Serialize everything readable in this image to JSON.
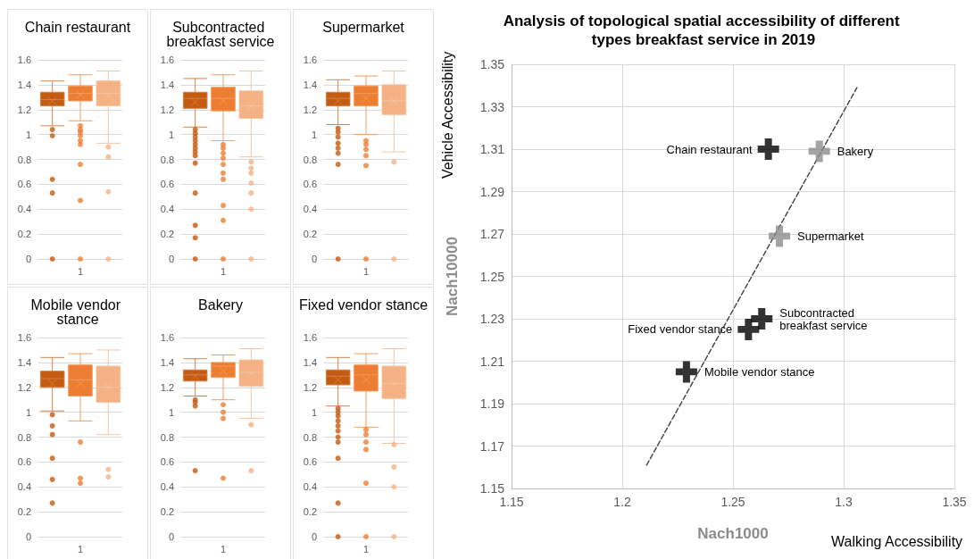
{
  "chart_data": [
    {
      "type": "box",
      "title": "Chain restaurant",
      "categories": [
        null,
        "1",
        null
      ],
      "ylim": [
        0,
        1.6
      ],
      "yticks": [
        0,
        0.2,
        0.4,
        0.6,
        0.8,
        1,
        1.2,
        1.4,
        1.6
      ],
      "grid": "y",
      "colors": [
        "#c55a11",
        "#ed7d31",
        "#f4b183"
      ],
      "boxes": [
        {
          "low": 1.07,
          "q1": 1.23,
          "median": 1.28,
          "q3": 1.34,
          "high": 1.43,
          "mean": 1.27,
          "outliers": [
            1.04,
            0.99,
            0.64,
            0.53,
            0
          ]
        },
        {
          "low": 1.11,
          "q1": 1.27,
          "median": 1.33,
          "q3": 1.39,
          "high": 1.48,
          "mean": 1.32,
          "outliers": [
            1.07,
            1.04,
            1.02,
            0.99,
            0.95,
            0.92,
            0.76,
            0.47,
            0
          ]
        },
        {
          "low": 0.93,
          "q1": 1.23,
          "median": 1.33,
          "q3": 1.43,
          "high": 1.51,
          "mean": 1.31,
          "outliers": [
            0.9,
            0.82,
            0.54,
            0
          ]
        }
      ]
    },
    {
      "type": "box",
      "title": "Subcontracted breakfast service",
      "categories": [
        null,
        "1",
        null
      ],
      "ylim": [
        0,
        1.6
      ],
      "yticks": [
        0,
        0.2,
        0.4,
        0.6,
        0.8,
        1,
        1.2,
        1.4,
        1.6
      ],
      "grid": "y",
      "colors": [
        "#c55a11",
        "#ed7d31",
        "#f4b183"
      ],
      "boxes": [
        {
          "low": 1.06,
          "q1": 1.21,
          "median": 1.29,
          "q3": 1.34,
          "high": 1.45,
          "mean": 1.26,
          "outliers": [
            1.04,
            1.01,
            0.98,
            0.95,
            0.92,
            0.89,
            0.86,
            0.83,
            0.77,
            0.53,
            0.27,
            0.17,
            0
          ]
        },
        {
          "low": 0.95,
          "q1": 1.19,
          "median": 1.29,
          "q3": 1.38,
          "high": 1.48,
          "mean": 1.27,
          "outliers": [
            0.92,
            0.89,
            0.85,
            0.81,
            0.76,
            0.69,
            0.64,
            0.43,
            0.31,
            0
          ]
        },
        {
          "low": 0.82,
          "q1": 1.13,
          "median": 1.23,
          "q3": 1.35,
          "high": 1.51,
          "mean": 1.23,
          "outliers": [
            0.78,
            0.73,
            0.69,
            0.61,
            0.53,
            0.4,
            0
          ]
        }
      ]
    },
    {
      "type": "box",
      "title": "Supermarket",
      "categories": [
        null,
        "1",
        null
      ],
      "ylim": [
        0,
        1.6
      ],
      "yticks": [
        0,
        0.2,
        0.4,
        0.6,
        0.8,
        1,
        1.2,
        1.4,
        1.6
      ],
      "grid": "y",
      "colors": [
        "#c55a11",
        "#ed7d31",
        "#f4b183"
      ],
      "boxes": [
        {
          "low": 1.08,
          "q1": 1.23,
          "median": 1.29,
          "q3": 1.34,
          "high": 1.44,
          "mean": 1.27,
          "outliers": [
            1.05,
            1.02,
            0.98,
            0.93,
            0.89,
            0.85,
            0.76,
            0
          ]
        },
        {
          "low": 1.0,
          "q1": 1.23,
          "median": 1.33,
          "q3": 1.39,
          "high": 1.47,
          "mean": 1.29,
          "outliers": [
            0.95,
            0.92,
            0.88,
            0.83,
            0.75,
            0
          ]
        },
        {
          "low": 0.86,
          "q1": 1.16,
          "median": 1.27,
          "q3": 1.4,
          "high": 1.51,
          "mean": 1.27,
          "outliers": [
            0.78,
            0
          ]
        }
      ]
    },
    {
      "type": "box",
      "title": "Mobile vendor stance",
      "categories": [
        null,
        "1",
        null
      ],
      "ylim": [
        0,
        1.6
      ],
      "yticks": [
        0,
        0.2,
        0.4,
        0.6,
        0.8,
        1,
        1.2,
        1.4,
        1.6
      ],
      "grid": "y",
      "colors": [
        "#c55a11",
        "#ed7d31",
        "#f4b183"
      ],
      "boxes": [
        {
          "low": 1.01,
          "q1": 1.2,
          "median": 1.27,
          "q3": 1.33,
          "high": 1.44,
          "mean": 1.23,
          "outliers": [
            0.98,
            0.89,
            0.82,
            0.63,
            0.46,
            0.27
          ]
        },
        {
          "low": 0.93,
          "q1": 1.13,
          "median": 1.26,
          "q3": 1.38,
          "high": 1.47,
          "mean": 1.23,
          "outliers": [
            0.76,
            0.47,
            0.43
          ]
        },
        {
          "low": 0.82,
          "q1": 1.08,
          "median": 1.2,
          "q3": 1.37,
          "high": 1.5,
          "mean": 1.2,
          "outliers": [
            0.54,
            0.48
          ]
        }
      ]
    },
    {
      "type": "box",
      "title": "Bakery",
      "categories": [
        null,
        "1",
        null
      ],
      "ylim": [
        0,
        1.6
      ],
      "yticks": [
        0,
        0.2,
        0.4,
        0.6,
        0.8,
        1,
        1.2,
        1.4,
        1.6
      ],
      "grid": "y",
      "colors": [
        "#c55a11",
        "#ed7d31",
        "#f4b183"
      ],
      "boxes": [
        {
          "low": 1.13,
          "q1": 1.25,
          "median": 1.3,
          "q3": 1.34,
          "high": 1.43,
          "mean": 1.29,
          "outliers": [
            1.1,
            1.08,
            1.05,
            0.53
          ]
        },
        {
          "low": 1.1,
          "q1": 1.28,
          "median": 1.37,
          "q3": 1.4,
          "high": 1.46,
          "mean": 1.33,
          "outliers": [
            1.06,
            1.0,
            0.95,
            0.47
          ]
        },
        {
          "low": 0.95,
          "q1": 1.21,
          "median": 1.32,
          "q3": 1.42,
          "high": 1.51,
          "mean": 1.31,
          "outliers": [
            0.9,
            0.53
          ]
        }
      ]
    },
    {
      "type": "box",
      "title": "Fixed vendor stance",
      "categories": [
        null,
        "1",
        null
      ],
      "ylim": [
        0,
        1.6
      ],
      "yticks": [
        0,
        0.2,
        0.4,
        0.6,
        0.8,
        1,
        1.2,
        1.4,
        1.6
      ],
      "grid": "y",
      "colors": [
        "#c55a11",
        "#ed7d31",
        "#f4b183"
      ],
      "boxes": [
        {
          "low": 1.05,
          "q1": 1.22,
          "median": 1.29,
          "q3": 1.34,
          "high": 1.44,
          "mean": 1.26,
          "outliers": [
            1.03,
            1.0,
            0.97,
            0.93,
            0.89,
            0.85,
            0.8,
            0.76,
            0.63,
            0.27,
            0
          ]
        },
        {
          "low": 0.88,
          "q1": 1.17,
          "median": 1.3,
          "q3": 1.38,
          "high": 1.47,
          "mean": 1.26,
          "outliers": [
            0.86,
            0.82,
            0.76,
            0.7,
            0.43,
            0
          ]
        },
        {
          "low": 0.75,
          "q1": 1.11,
          "median": 1.23,
          "q3": 1.37,
          "high": 1.51,
          "mean": 1.23,
          "outliers": [
            0.74,
            0.56,
            0.4,
            0
          ]
        }
      ]
    },
    {
      "type": "scatter",
      "title": "Analysis of topological spatial accessibility of different types breakfast service in 2019",
      "xlabel": "Nach1000",
      "ylabel": "Nach10000",
      "xlim": [
        1.15,
        1.35
      ],
      "xticks": [
        1.15,
        1.2,
        1.25,
        1.3,
        1.35
      ],
      "ylim": [
        1.15,
        1.35
      ],
      "yticks": [
        1.15,
        1.17,
        1.19,
        1.21,
        1.23,
        1.25,
        1.27,
        1.29,
        1.31,
        1.33,
        1.35
      ],
      "grid": true,
      "marker": "cross",
      "series": [
        {
          "color": "#000000",
          "x": [
            1.266,
            1.263,
            1.257,
            1.229
          ],
          "values": [
            1.31,
            1.23,
            1.225,
            1.205
          ]
        },
        {
          "color": "#8c8c8c",
          "x": [
            1.289,
            1.271
          ],
          "values": [
            1.309,
            1.269
          ]
        },
        {
          "type": "line",
          "color": "#404040",
          "line_style": "dashed",
          "marker": "none",
          "x": [
            1.211,
            1.306
          ],
          "values": [
            1.161,
            1.339
          ]
        }
      ],
      "annotations": [
        "Walking Accessibility",
        "Vehicle Accessibility",
        {
          "text": "Chain restaurant",
          "x": 1.266,
          "y": 1.31
        },
        {
          "text": "Bakery",
          "x": 1.289,
          "y": 1.309
        },
        {
          "text": "Supermarket",
          "x": 1.271,
          "y": 1.269
        },
        {
          "text": "Subcontracted breakfast service",
          "x": 1.263,
          "y": 1.23
        },
        {
          "text": "Fixed vendor stance",
          "x": 1.257,
          "y": 1.225
        },
        {
          "text": "Mobile vendor stance",
          "x": 1.229,
          "y": 1.205
        }
      ]
    }
  ]
}
